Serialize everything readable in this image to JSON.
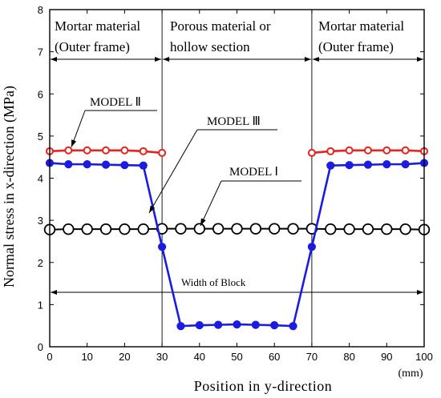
{
  "chart_data": {
    "type": "line",
    "xlabel": "Position in y-direction",
    "xunit": "(mm)",
    "ylabel": "Normal stress in x-direction (MPa)",
    "xlim": [
      0,
      100
    ],
    "ylim": [
      0,
      8
    ],
    "xticks": [
      0,
      10,
      20,
      30,
      40,
      50,
      60,
      70,
      80,
      90,
      100
    ],
    "yticks": [
      0,
      1,
      2,
      3,
      4,
      5,
      6,
      7,
      8
    ],
    "grid": false,
    "regions": [
      {
        "line1": "Mortar material",
        "line2": "(Outer frame)"
      },
      {
        "line1": "Porous material or",
        "line2": "hollow section"
      },
      {
        "line1": "Mortar material",
        "line2": "(Outer frame)"
      }
    ],
    "width_label": "Width of Block",
    "series": [
      {
        "name": "MODEL Ⅰ",
        "color": "#000000",
        "marker": "open-circle",
        "segments": [
          {
            "x": [
              0,
              5,
              10,
              15,
              20,
              25,
              30,
              35,
              40,
              45,
              50,
              55,
              60,
              65,
              70,
              75,
              80,
              85,
              90,
              95,
              100
            ],
            "y": [
              2.78,
              2.79,
              2.79,
              2.79,
              2.79,
              2.79,
              2.8,
              2.8,
              2.8,
              2.8,
              2.8,
              2.8,
              2.8,
              2.8,
              2.8,
              2.79,
              2.79,
              2.79,
              2.79,
              2.79,
              2.78
            ]
          }
        ]
      },
      {
        "name": "MODEL Ⅱ",
        "color": "#e8231f",
        "marker": "small-circle",
        "segments": [
          {
            "x": [
              0,
              5,
              10,
              15,
              20,
              25,
              30
            ],
            "y": [
              4.64,
              4.66,
              4.66,
              4.66,
              4.66,
              4.64,
              4.6
            ]
          },
          {
            "x": [
              70,
              75,
              80,
              85,
              90,
              95,
              100
            ],
            "y": [
              4.6,
              4.64,
              4.66,
              4.66,
              4.66,
              4.66,
              4.64
            ]
          }
        ]
      },
      {
        "name": "MODEL Ⅲ",
        "color": "#1c1ce0",
        "marker": "filled-circle",
        "segments": [
          {
            "x": [
              0,
              5,
              10,
              15,
              20,
              25,
              30,
              35,
              40,
              45,
              50,
              55,
              60,
              65,
              70,
              75,
              80,
              85,
              90,
              95,
              100
            ],
            "y": [
              4.36,
              4.33,
              4.33,
              4.32,
              4.31,
              4.3,
              2.37,
              0.49,
              0.51,
              0.52,
              0.53,
              0.52,
              0.51,
              0.49,
              2.37,
              4.3,
              4.31,
              4.32,
              4.33,
              4.33,
              4.36
            ]
          }
        ]
      }
    ]
  }
}
